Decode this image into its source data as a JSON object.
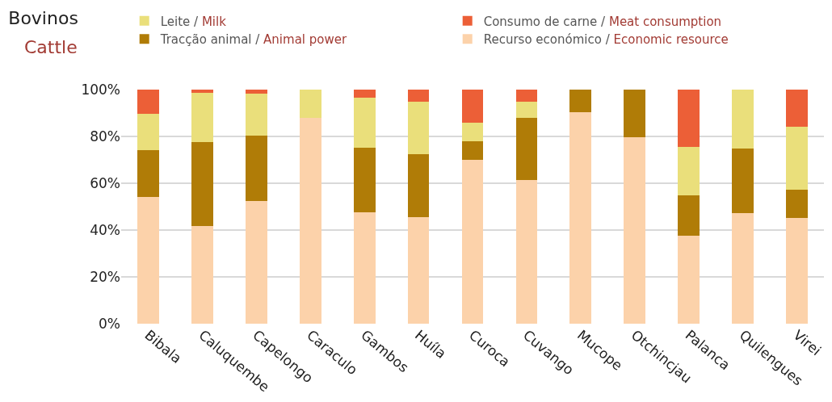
{
  "chart_data": {
    "type": "bar",
    "title": "Bovinos",
    "subtitle": "Cattle",
    "stacked": true,
    "categories": [
      "Bibala",
      "Caluquembe",
      "Capelongo",
      "Caraculo",
      "Gambos",
      "Huíla",
      "Curoca",
      "Cuvango",
      "Mucope",
      "Otchincjau",
      "Palanca",
      "Quilengues",
      "Virei"
    ],
    "series": [
      {
        "name": "Recurso económico / Economic resource",
        "color": "#fcd2aa",
        "values": [
          54.0,
          41.7,
          52.5,
          87.9,
          47.5,
          45.4,
          70.1,
          61.3,
          90.4,
          79.6,
          37.7,
          47.1,
          45.1
        ]
      },
      {
        "name": "Tracção animal / Animal power",
        "color": "#b07c07",
        "values": [
          20.0,
          36.0,
          27.8,
          0,
          27.8,
          27.1,
          7.9,
          26.7,
          9.6,
          20.4,
          17.2,
          27.8,
          12.3
        ]
      },
      {
        "name": "Leite / Milk",
        "color": "#eadf7b",
        "values": [
          15.7,
          20.9,
          18.0,
          12.1,
          21.2,
          22.3,
          8.0,
          6.8,
          0,
          0,
          20.6,
          25.1,
          26.9
        ]
      },
      {
        "name": "Consumo de carne / Meat consumption",
        "color": "#ec5f37",
        "values": [
          10.3,
          1.4,
          1.7,
          0,
          3.5,
          5.2,
          14.0,
          5.2,
          0,
          0,
          24.5,
          0,
          15.7
        ]
      }
    ],
    "ylim": [
      0,
      100
    ],
    "yticks": [
      {
        "value": 0,
        "label": "0%"
      },
      {
        "value": 20,
        "label": "20%"
      },
      {
        "value": 40,
        "label": "40%"
      },
      {
        "value": 60,
        "label": "60%"
      },
      {
        "value": 80,
        "label": "80%"
      },
      {
        "value": 100,
        "label": "100%"
      }
    ],
    "grid": "y",
    "legend": "top"
  }
}
